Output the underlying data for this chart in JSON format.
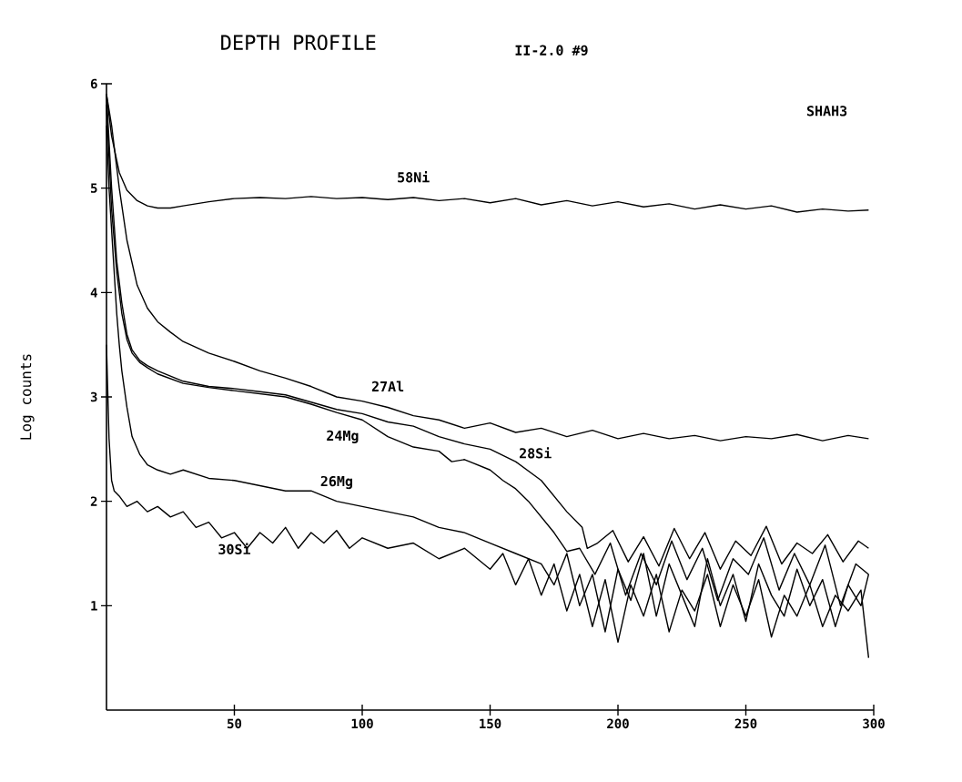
{
  "chart_data": {
    "type": "line",
    "title": "DEPTH PROFILE",
    "ylabel": "Log counts",
    "annotations": [
      "II-2.0 #9",
      "SHAH3"
    ],
    "xlim": [
      0,
      300
    ],
    "ylim": [
      0,
      6
    ],
    "xticks": [
      50,
      100,
      150,
      200,
      250,
      300
    ],
    "yticks": [
      1,
      2,
      3,
      4,
      5,
      6
    ],
    "series": [
      {
        "name": "58Ni",
        "color": "#000000",
        "x": [
          0,
          2,
          5,
          8,
          12,
          16,
          20,
          25,
          30,
          40,
          50,
          60,
          70,
          80,
          90,
          100,
          110,
          120,
          130,
          140,
          150,
          160,
          170,
          180,
          190,
          200,
          210,
          220,
          230,
          240,
          250,
          260,
          270,
          280,
          290,
          298
        ],
        "values": [
          5.9,
          5.5,
          5.15,
          4.98,
          4.88,
          4.83,
          4.81,
          4.81,
          4.83,
          4.87,
          4.9,
          4.91,
          4.9,
          4.92,
          4.9,
          4.91,
          4.89,
          4.91,
          4.88,
          4.9,
          4.86,
          4.9,
          4.84,
          4.88,
          4.83,
          4.87,
          4.82,
          4.85,
          4.8,
          4.84,
          4.8,
          4.83,
          4.77,
          4.8,
          4.78,
          4.79
        ]
      },
      {
        "name": "27Al",
        "color": "#000000",
        "x": [
          0,
          2,
          5,
          8,
          12,
          16,
          20,
          25,
          30,
          40,
          50,
          60,
          70,
          80,
          90,
          100,
          110,
          120,
          130,
          140,
          150,
          160,
          170,
          180,
          190,
          200,
          210,
          220,
          230,
          240,
          250,
          260,
          270,
          280,
          290,
          298
        ],
        "values": [
          5.9,
          5.6,
          5.0,
          4.5,
          4.07,
          3.85,
          3.72,
          3.62,
          3.53,
          3.42,
          3.34,
          3.25,
          3.18,
          3.1,
          3.0,
          2.96,
          2.9,
          2.82,
          2.78,
          2.7,
          2.75,
          2.66,
          2.7,
          2.62,
          2.68,
          2.6,
          2.65,
          2.6,
          2.63,
          2.58,
          2.62,
          2.6,
          2.64,
          2.58,
          2.63,
          2.6
        ]
      },
      {
        "name": "28Si",
        "color": "#000000",
        "x": [
          0,
          2,
          4,
          6,
          8,
          10,
          13,
          16,
          20,
          30,
          40,
          50,
          60,
          70,
          80,
          90,
          100,
          110,
          120,
          130,
          140,
          150,
          160,
          170,
          180,
          186,
          188,
          192,
          198,
          204,
          210,
          216,
          222,
          228,
          234,
          240,
          246,
          252,
          258,
          264,
          270,
          276,
          282,
          288,
          294,
          298
        ],
        "values": [
          5.9,
          5.0,
          4.3,
          3.9,
          3.6,
          3.45,
          3.35,
          3.3,
          3.25,
          3.15,
          3.1,
          3.08,
          3.05,
          3.02,
          2.95,
          2.88,
          2.84,
          2.76,
          2.72,
          2.62,
          2.55,
          2.5,
          2.38,
          2.2,
          1.9,
          1.75,
          1.55,
          1.6,
          1.72,
          1.42,
          1.66,
          1.38,
          1.74,
          1.45,
          1.7,
          1.35,
          1.62,
          1.48,
          1.76,
          1.4,
          1.6,
          1.5,
          1.68,
          1.42,
          1.62,
          1.55
        ]
      },
      {
        "name": "24Mg",
        "color": "#000000",
        "x": [
          0,
          2,
          4,
          6,
          8,
          10,
          13,
          16,
          20,
          30,
          40,
          50,
          60,
          70,
          80,
          90,
          100,
          110,
          120,
          130,
          135,
          140,
          150,
          155,
          160,
          165,
          170,
          175,
          180,
          185,
          191,
          197,
          203,
          209,
          215,
          221,
          227,
          233,
          239,
          245,
          251,
          257,
          263,
          269,
          275,
          281,
          287,
          293,
          298
        ],
        "values": [
          5.8,
          4.8,
          4.2,
          3.8,
          3.55,
          3.42,
          3.33,
          3.28,
          3.22,
          3.13,
          3.09,
          3.06,
          3.03,
          3.0,
          2.93,
          2.85,
          2.78,
          2.62,
          2.52,
          2.48,
          2.38,
          2.4,
          2.3,
          2.2,
          2.12,
          2.0,
          1.85,
          1.7,
          1.52,
          1.55,
          1.3,
          1.6,
          1.1,
          1.5,
          1.2,
          1.62,
          1.25,
          1.55,
          1.05,
          1.45,
          1.3,
          1.65,
          1.15,
          1.5,
          1.2,
          1.58,
          1.0,
          1.4,
          1.3
        ]
      },
      {
        "name": "26Mg",
        "color": "#000000",
        "x": [
          0,
          1,
          2,
          3,
          4,
          5,
          6,
          8,
          10,
          13,
          16,
          20,
          25,
          30,
          40,
          50,
          60,
          70,
          80,
          90,
          100,
          110,
          120,
          130,
          140,
          150,
          160,
          170,
          175,
          180,
          185,
          190,
          195,
          200,
          205,
          210,
          215,
          220,
          225,
          230,
          235,
          240,
          245,
          250,
          255,
          260,
          265,
          270,
          275,
          280,
          285,
          290,
          295,
          298
        ],
        "values": [
          5.6,
          5.0,
          4.6,
          4.2,
          3.8,
          3.5,
          3.25,
          2.9,
          2.62,
          2.45,
          2.35,
          2.3,
          2.26,
          2.3,
          2.22,
          2.2,
          2.15,
          2.1,
          2.1,
          2.0,
          1.95,
          1.9,
          1.85,
          1.75,
          1.7,
          1.6,
          1.5,
          1.4,
          1.2,
          1.5,
          1.0,
          1.3,
          0.75,
          1.35,
          1.05,
          1.5,
          0.9,
          1.4,
          1.1,
          0.8,
          1.45,
          1.0,
          1.3,
          0.85,
          1.4,
          1.1,
          0.9,
          1.35,
          1.0,
          1.25,
          0.8,
          1.2,
          1.0,
          1.3
        ]
      },
      {
        "name": "30Si",
        "color": "#000000",
        "x": [
          0,
          1,
          2,
          3,
          5,
          8,
          12,
          16,
          20,
          25,
          30,
          35,
          40,
          45,
          50,
          55,
          60,
          65,
          70,
          75,
          80,
          85,
          90,
          95,
          100,
          110,
          120,
          130,
          140,
          150,
          155,
          160,
          165,
          170,
          175,
          180,
          185,
          190,
          195,
          200,
          205,
          210,
          215,
          220,
          225,
          230,
          235,
          240,
          245,
          250,
          255,
          260,
          265,
          270,
          275,
          280,
          285,
          290,
          295,
          298
        ],
        "values": [
          3.5,
          2.6,
          2.2,
          2.1,
          2.05,
          1.95,
          2.0,
          1.9,
          1.95,
          1.85,
          1.9,
          1.75,
          1.8,
          1.65,
          1.7,
          1.55,
          1.7,
          1.6,
          1.75,
          1.55,
          1.7,
          1.6,
          1.72,
          1.55,
          1.65,
          1.55,
          1.6,
          1.45,
          1.55,
          1.35,
          1.5,
          1.2,
          1.45,
          1.1,
          1.4,
          0.95,
          1.3,
          0.8,
          1.25,
          0.65,
          1.2,
          0.9,
          1.3,
          0.75,
          1.15,
          0.95,
          1.3,
          0.8,
          1.2,
          0.9,
          1.25,
          0.7,
          1.1,
          0.9,
          1.2,
          0.8,
          1.1,
          0.95,
          1.15,
          0.5
        ]
      }
    ]
  }
}
